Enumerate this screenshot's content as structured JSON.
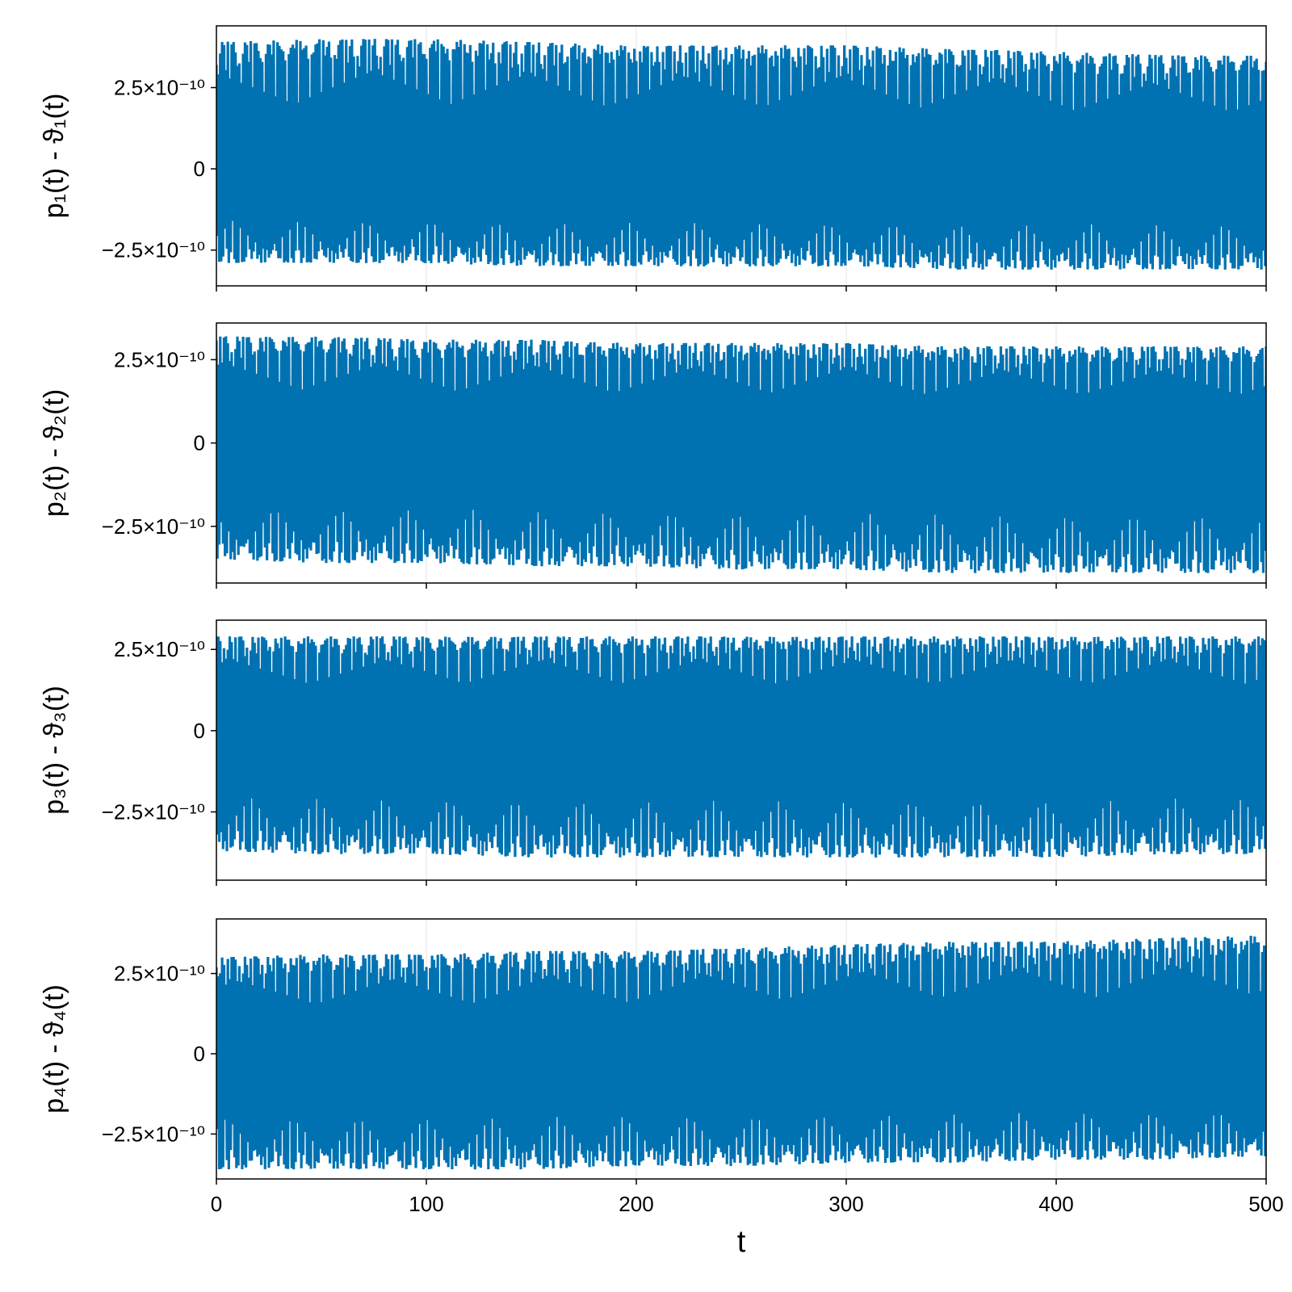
{
  "chart_data": [
    {
      "type": "line",
      "panel": 1,
      "ylabel": "p₁(t) - ϑ₁(t)",
      "xlim": [
        0,
        500
      ],
      "ylim": [
        -3.6e-10,
        4.4e-10
      ],
      "yticks": [
        {
          "value": 2.5e-10,
          "label": "2.5×10⁻¹⁰"
        },
        {
          "value": 0,
          "label": "0"
        },
        {
          "value": -2.5e-10,
          "label": "−2.5×10⁻¹⁰"
        }
      ],
      "xticks": [
        0,
        100,
        200,
        300,
        400,
        500
      ],
      "grid": true,
      "color": "#0072b2",
      "series": [
        {
          "x": [
            0,
            50,
            100,
            150,
            200,
            250,
            300,
            350,
            400,
            450,
            500
          ],
          "upper": [
            3.9e-10,
            4e-10,
            4e-10,
            3.9e-10,
            3.8e-10,
            3.8e-10,
            3.8e-10,
            3.7e-10,
            3.6e-10,
            3.5e-10,
            3.5e-10
          ],
          "lower": [
            -2.9e-10,
            -2.9e-10,
            -2.9e-10,
            -3e-10,
            -3e-10,
            -3e-10,
            -3e-10,
            -3.1e-10,
            -3.1e-10,
            -3.1e-10,
            -3.1e-10
          ]
        }
      ]
    },
    {
      "type": "line",
      "panel": 2,
      "ylabel": "p₂(t) - ϑ₂(t)",
      "xlim": [
        0,
        500
      ],
      "ylim": [
        -4.2e-10,
        3.6e-10
      ],
      "yticks": [
        {
          "value": 2.5e-10,
          "label": "2.5×10⁻¹⁰"
        },
        {
          "value": 0,
          "label": "0"
        },
        {
          "value": -2.5e-10,
          "label": "−2.5×10⁻¹⁰"
        }
      ],
      "xticks": [
        0,
        100,
        200,
        300,
        400,
        500
      ],
      "grid": true,
      "color": "#0072b2",
      "series": [
        {
          "x": [
            0,
            50,
            100,
            150,
            200,
            250,
            300,
            350,
            400,
            450,
            500
          ],
          "upper": [
            3.2e-10,
            3.2e-10,
            3.1e-10,
            3.1e-10,
            3e-10,
            3e-10,
            3e-10,
            2.9e-10,
            2.9e-10,
            2.9e-10,
            2.9e-10
          ],
          "lower": [
            -3.5e-10,
            -3.6e-10,
            -3.6e-10,
            -3.7e-10,
            -3.7e-10,
            -3.8e-10,
            -3.8e-10,
            -3.9e-10,
            -3.9e-10,
            -3.9e-10,
            -3.9e-10
          ]
        }
      ]
    },
    {
      "type": "line",
      "panel": 3,
      "ylabel": "p₃(t) - ϑ₃(t)",
      "xlim": [
        0,
        500
      ],
      "ylim": [
        -4.6e-10,
        3.4e-10
      ],
      "yticks": [
        {
          "value": 2.5e-10,
          "label": "2.5×10⁻¹⁰"
        },
        {
          "value": 0,
          "label": "0"
        },
        {
          "value": -2.5e-10,
          "label": "−2.5×10⁻¹⁰"
        }
      ],
      "xticks": [
        0,
        100,
        200,
        300,
        400,
        500
      ],
      "grid": true,
      "color": "#0072b2",
      "series": [
        {
          "x": [
            0,
            50,
            100,
            150,
            200,
            250,
            300,
            350,
            400,
            450,
            500
          ],
          "upper": [
            2.9e-10,
            2.9e-10,
            2.9e-10,
            2.9e-10,
            2.9e-10,
            2.9e-10,
            2.9e-10,
            2.9e-10,
            2.9e-10,
            2.9e-10,
            2.9e-10
          ],
          "lower": [
            -3.7e-10,
            -3.8e-10,
            -3.8e-10,
            -3.9e-10,
            -3.9e-10,
            -3.9e-10,
            -3.9e-10,
            -3.9e-10,
            -3.9e-10,
            -3.8e-10,
            -3.8e-10
          ]
        }
      ]
    },
    {
      "type": "line",
      "panel": 4,
      "ylabel": "p₄(t) - ϑ₄(t)",
      "xlim": [
        0,
        500
      ],
      "ylim": [
        -3.9e-10,
        4.2e-10
      ],
      "yticks": [
        {
          "value": 2.5e-10,
          "label": "2.5×10⁻¹⁰"
        },
        {
          "value": 0,
          "label": "0"
        },
        {
          "value": -2.5e-10,
          "label": "−2.5×10⁻¹⁰"
        }
      ],
      "xticks": [
        0,
        100,
        200,
        300,
        400,
        500
      ],
      "xticklabels": [
        "0",
        "100",
        "200",
        "300",
        "400",
        "500"
      ],
      "xlabel": "t",
      "grid": true,
      "color": "#0072b2",
      "series": [
        {
          "x": [
            0,
            50,
            100,
            150,
            200,
            250,
            300,
            350,
            400,
            450,
            500
          ],
          "upper": [
            3e-10,
            3.1e-10,
            3.1e-10,
            3.2e-10,
            3.2e-10,
            3.3e-10,
            3.4e-10,
            3.5e-10,
            3.5e-10,
            3.6e-10,
            3.7e-10
          ],
          "lower": [
            -3.6e-10,
            -3.6e-10,
            -3.6e-10,
            -3.6e-10,
            -3.5e-10,
            -3.5e-10,
            -3.4e-10,
            -3.4e-10,
            -3.3e-10,
            -3.3e-10,
            -3.2e-10
          ]
        }
      ]
    }
  ]
}
